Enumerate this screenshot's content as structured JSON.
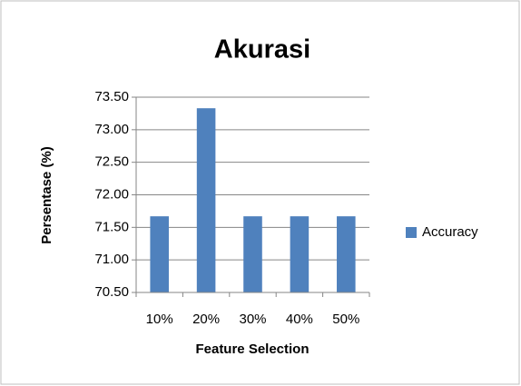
{
  "chart_data": {
    "type": "bar",
    "title": "Akurasi",
    "x_label": "Feature Selection",
    "y_label": "Persentase (%)",
    "categories": [
      "10%",
      "20%",
      "30%",
      "40%",
      "50%"
    ],
    "series": [
      {
        "name": "Accuracy",
        "color": "#4f81bd",
        "values": [
          71.67,
          73.33,
          71.67,
          71.67,
          71.67
        ]
      }
    ],
    "ylim": [
      70.5,
      73.5
    ],
    "yticks": [
      {
        "value": 70.5,
        "label": "70.50"
      },
      {
        "value": 71,
        "label": "71.00"
      },
      {
        "value": 71.5,
        "label": "71.50"
      },
      {
        "value": 72,
        "label": "72.00"
      },
      {
        "value": 72.5,
        "label": "72.50"
      },
      {
        "value": 73,
        "label": "73.00"
      },
      {
        "value": 73.5,
        "label": "73.50"
      }
    ],
    "grid": true,
    "legend": "right"
  }
}
